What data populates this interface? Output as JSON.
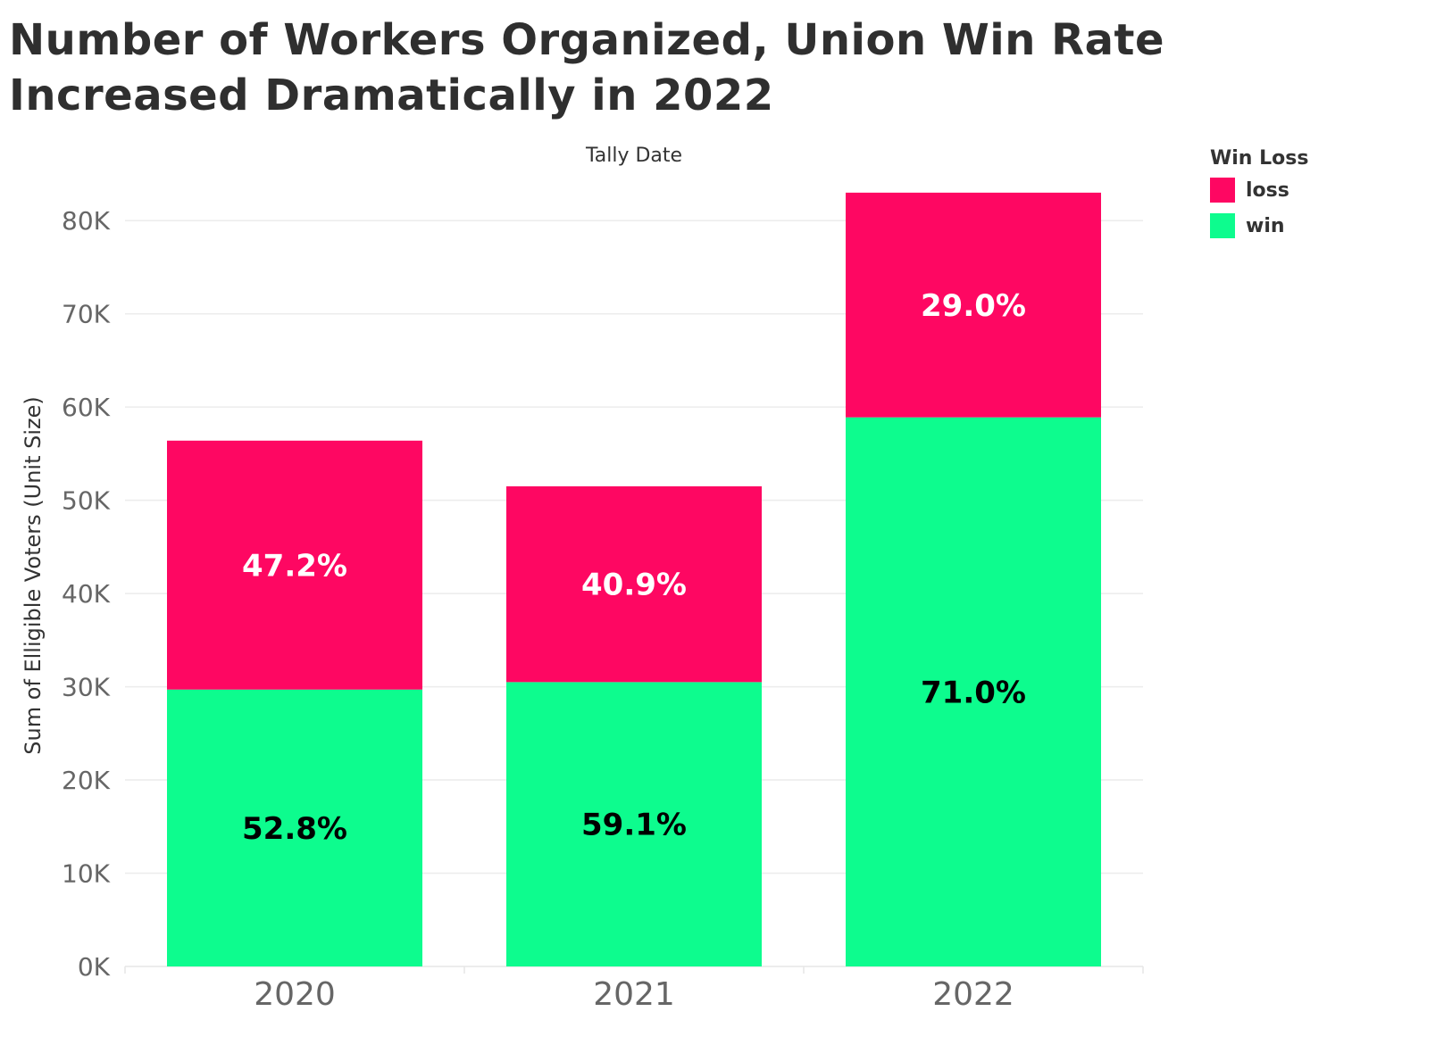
{
  "chart_data": {
    "type": "bar",
    "stacked": true,
    "title": "Number of Workers Organized, Union Win Rate Increased Dramatically in 2022",
    "title_lines": [
      "Number of  Workers Organized, Union Win Rate",
      "Increased Dramatically in 2022"
    ],
    "xlabel": "Tally Date",
    "ylabel": "Sum of Elligible Voters (Unit Size)",
    "categories": [
      "2020",
      "2021",
      "2022"
    ],
    "ylim": [
      0,
      85000
    ],
    "yticks": [
      0,
      10000,
      20000,
      30000,
      40000,
      50000,
      60000,
      70000,
      80000
    ],
    "ytick_labels": [
      "0K",
      "10K",
      "20K",
      "30K",
      "40K",
      "50K",
      "60K",
      "70K",
      "80K"
    ],
    "grid": true,
    "legend_position": "top-right",
    "legend_title": "Win Loss",
    "series": [
      {
        "name": "win",
        "color": "#0dfc8e",
        "values": [
          29700,
          30500,
          58900
        ],
        "labels": [
          "52.8%",
          "59.1%",
          "71.0%"
        ],
        "label_color": "#000000"
      },
      {
        "name": "loss",
        "color": "#fe0762",
        "values": [
          26700,
          21000,
          24100
        ],
        "labels": [
          "47.2%",
          "40.9%",
          "29.0%"
        ],
        "label_color": "#ffffff"
      }
    ]
  }
}
